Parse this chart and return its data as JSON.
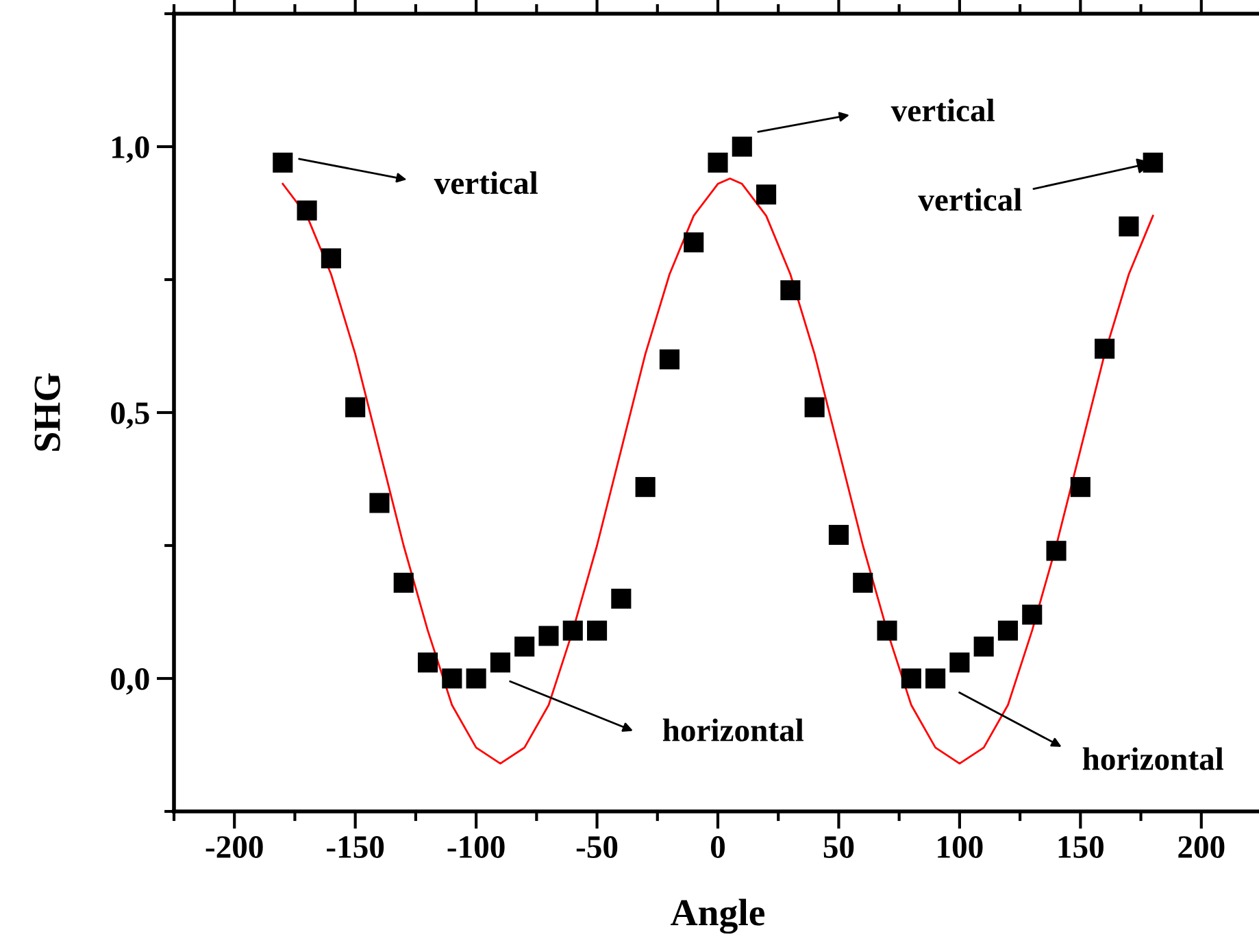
{
  "chart_data": {
    "type": "scatter",
    "xlabel": "Angle",
    "ylabel": "SHG",
    "xlim": [
      -225,
      225
    ],
    "ylim": [
      -0.25,
      1.25
    ],
    "xticks": [
      -200,
      -150,
      -100,
      -50,
      0,
      50,
      100,
      150,
      200
    ],
    "yticks": [
      {
        "value": 0,
        "label": "0,0"
      },
      {
        "value": 0.5,
        "label": "0,5"
      },
      {
        "value": 1.0,
        "label": "1,0"
      }
    ],
    "grid": false,
    "legend": false,
    "series": [
      {
        "type": "scatter",
        "marker": "square",
        "color": "#000000",
        "x": [
          -180,
          -170,
          -160,
          -150,
          -140,
          -130,
          -120,
          -110,
          -100,
          -90,
          -80,
          -70,
          -60,
          -50,
          -40,
          -30,
          -20,
          -10,
          0,
          10,
          20,
          30,
          40,
          50,
          60,
          70,
          80,
          90,
          100,
          110,
          120,
          130,
          140,
          150,
          160,
          170,
          180
        ],
        "values": [
          0.97,
          0.88,
          0.79,
          0.51,
          0.33,
          0.18,
          0.03,
          0.0,
          0.0,
          0.03,
          0.06,
          0.08,
          0.09,
          0.09,
          0.15,
          0.36,
          0.6,
          0.82,
          0.97,
          1.0,
          0.91,
          0.73,
          0.51,
          0.27,
          0.18,
          0.09,
          0.0,
          0.0,
          0.03,
          0.06,
          0.09,
          0.12,
          0.24,
          0.36,
          0.62,
          0.85,
          0.97
        ]
      },
      {
        "type": "line",
        "marker": "none",
        "line_style": "solid",
        "color": "#ff0000",
        "x": [
          -180,
          -170,
          -160,
          -150,
          -140,
          -130,
          -120,
          -110,
          -100,
          -90,
          -80,
          -70,
          -60,
          -50,
          -40,
          -30,
          -20,
          -10,
          0,
          5,
          10,
          20,
          30,
          40,
          50,
          60,
          70,
          80,
          90,
          100,
          110,
          120,
          130,
          140,
          150,
          160,
          170,
          180
        ],
        "values": [
          0.93,
          0.87,
          0.76,
          0.61,
          0.43,
          0.25,
          0.09,
          -0.05,
          -0.13,
          -0.16,
          -0.13,
          -0.05,
          0.09,
          0.25,
          0.43,
          0.61,
          0.76,
          0.87,
          0.93,
          0.94,
          0.93,
          0.87,
          0.76,
          0.61,
          0.43,
          0.25,
          0.09,
          -0.05,
          -0.13,
          -0.16,
          -0.13,
          -0.05,
          0.09,
          0.25,
          0.43,
          0.61,
          0.76,
          0.87
        ]
      }
    ],
    "annotations": [
      "vertical",
      "vertical",
      {
        "text": "vertical",
        "x": 180,
        "y": 0.97
      },
      "horizontal",
      "horizontal"
    ]
  }
}
